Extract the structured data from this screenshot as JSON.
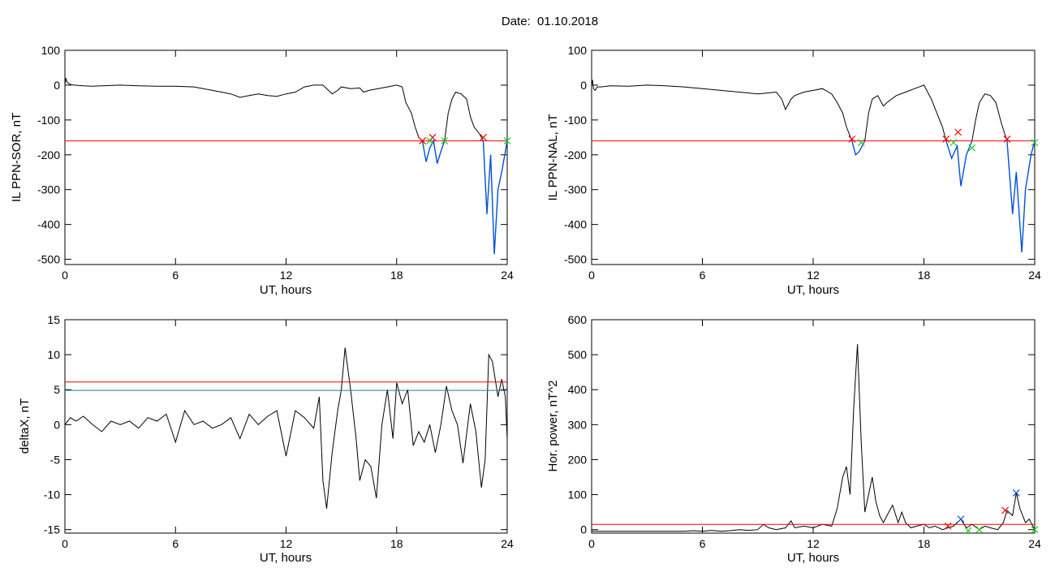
{
  "title": "Date:  01.10.2018",
  "colors": {
    "axes": "#000000",
    "trace": "#000000",
    "threshold": "#ff0000",
    "level2": "#1e7ea0",
    "event": "#0050dc",
    "start_mark": "#ff0000",
    "end_mark": "#22cc22",
    "peak_mark": "#0050dc"
  },
  "chart_data": [
    {
      "type": "line",
      "ylabel": "IL PPN-SOR, nT",
      "xlabel": "UT, hours",
      "xlim": [
        0,
        24
      ],
      "ylim": [
        -515,
        100
      ],
      "xticks": [
        0,
        6,
        12,
        18,
        24
      ],
      "yticks": [
        100,
        0,
        -100,
        -200,
        -300,
        -400,
        -500
      ],
      "threshold": -160,
      "series": [
        {
          "role": "trace",
          "x": [
            0,
            0.05,
            0.1,
            0.2,
            0.3,
            0.5,
            1,
            1.5,
            2,
            3,
            4,
            5,
            6,
            7,
            7.5,
            8,
            8.5,
            9,
            9.5,
            10,
            10.5,
            11,
            11.5,
            12,
            12.5,
            13,
            13.5,
            14,
            14.2,
            14.5,
            14.8,
            15,
            15.5,
            16,
            16.2,
            16.5,
            17,
            17.5,
            18,
            18.3,
            18.5,
            18.8,
            19,
            19.2,
            19.4
          ],
          "y": [
            0,
            20,
            10,
            5,
            2,
            0,
            -2,
            -3,
            -2,
            0,
            -2,
            -3,
            -3,
            -5,
            -10,
            -15,
            -20,
            -25,
            -35,
            -30,
            -25,
            -30,
            -32,
            -25,
            -20,
            -5,
            0,
            0,
            -10,
            -25,
            -15,
            -5,
            -10,
            -8,
            -20,
            -15,
            -10,
            -5,
            0,
            -5,
            -50,
            -80,
            -120,
            -150,
            -160
          ]
        },
        {
          "role": "trace",
          "x": [
            20.6,
            20.8,
            21,
            21.2,
            21.5,
            21.8,
            22,
            22.2,
            22.5,
            22.7
          ],
          "y": [
            -160,
            -80,
            -40,
            -20,
            -25,
            -40,
            -90,
            -120,
            -140,
            -160
          ]
        },
        {
          "role": "event",
          "x": [
            19.4,
            19.6,
            19.8,
            20,
            20.2,
            20.4,
            20.6
          ],
          "y": [
            -160,
            -220,
            -180,
            -160,
            -225,
            -190,
            -160
          ]
        },
        {
          "role": "event",
          "x": [
            22.7,
            22.9,
            23.1,
            23.3,
            23.5,
            23.7,
            24
          ],
          "y": [
            -160,
            -370,
            -200,
            -485,
            -300,
            -250,
            -160
          ]
        }
      ],
      "markers": [
        {
          "kind": "start",
          "x": [
            19.4,
            19.95,
            22.7
          ],
          "y": [
            -160,
            -150,
            -150
          ]
        },
        {
          "kind": "end",
          "x": [
            19.8,
            20.6,
            24
          ],
          "y": [
            -160,
            -160,
            -160
          ]
        }
      ]
    },
    {
      "type": "line",
      "ylabel": "IL PPN-NAL, nT",
      "xlabel": "UT, hours",
      "xlim": [
        0,
        24
      ],
      "ylim": [
        -515,
        100
      ],
      "xticks": [
        0,
        6,
        12,
        18,
        24
      ],
      "yticks": [
        100,
        0,
        -100,
        -200,
        -300,
        -400,
        -500
      ],
      "threshold": -160,
      "series": [
        {
          "role": "trace",
          "x": [
            0,
            0.05,
            0.1,
            0.2,
            0.3,
            0.5,
            1,
            2,
            3,
            4,
            5,
            6,
            7,
            8,
            9,
            10,
            10.3,
            10.5,
            10.8,
            11,
            11.5,
            12,
            12.5,
            13,
            13.3,
            13.6,
            13.8,
            14.1
          ],
          "y": [
            0,
            15,
            -10,
            -15,
            -5,
            -5,
            -2,
            -3,
            0,
            -2,
            -5,
            -10,
            -15,
            -20,
            -25,
            -20,
            -40,
            -70,
            -40,
            -30,
            -20,
            -15,
            -10,
            -25,
            -50,
            -80,
            -120,
            -160
          ]
        },
        {
          "role": "trace",
          "x": [
            14.8,
            15,
            15.2,
            15.5,
            15.8,
            16,
            16.5,
            17,
            17.5,
            18,
            18.4,
            18.7,
            19,
            19.2
          ],
          "y": [
            -160,
            -80,
            -40,
            -30,
            -60,
            -50,
            -30,
            -20,
            -10,
            0,
            -40,
            -80,
            -120,
            -160
          ]
        },
        {
          "role": "trace",
          "x": [
            20.6,
            20.8,
            21,
            21.3,
            21.6,
            21.9,
            22.2,
            22.5
          ],
          "y": [
            -160,
            -100,
            -50,
            -25,
            -30,
            -50,
            -110,
            -160
          ]
        },
        {
          "role": "event",
          "x": [
            14.1,
            14.3,
            14.5,
            14.8
          ],
          "y": [
            -160,
            -200,
            -190,
            -160
          ]
        },
        {
          "role": "event",
          "x": [
            19.2,
            19.5,
            19.8,
            20,
            20.3,
            20.6
          ],
          "y": [
            -160,
            -210,
            -175,
            -290,
            -200,
            -160
          ]
        },
        {
          "role": "event",
          "x": [
            22.5,
            22.8,
            23,
            23.3,
            23.5,
            23.8,
            24
          ],
          "y": [
            -160,
            -370,
            -250,
            -480,
            -300,
            -200,
            -160
          ]
        }
      ],
      "markers": [
        {
          "kind": "start",
          "x": [
            14.1,
            19.2,
            19.85,
            22.5
          ],
          "y": [
            -155,
            -155,
            -135,
            -155
          ]
        },
        {
          "kind": "end",
          "x": [
            14.6,
            19.6,
            20.6,
            24
          ],
          "y": [
            -165,
            -165,
            -180,
            -165
          ]
        }
      ]
    },
    {
      "type": "line",
      "ylabel": "deltaX, nT",
      "xlabel": "UT, hours",
      "xlim": [
        0,
        24
      ],
      "ylim": [
        -15.5,
        15
      ],
      "xticks": [
        0,
        6,
        12,
        18,
        24
      ],
      "yticks": [
        15,
        10,
        5,
        0,
        -5,
        -10,
        -15
      ],
      "threshold": 6.1,
      "level2": 4.9,
      "series": [
        {
          "role": "trace",
          "x": [
            0,
            0.3,
            0.6,
            1,
            1.5,
            2,
            2.5,
            3,
            3.5,
            4,
            4.5,
            5,
            5.5,
            6,
            6.5,
            7,
            7.5,
            8,
            8.5,
            9,
            9.5,
            10,
            10.5,
            11,
            11.5,
            12,
            12.5,
            13,
            13.5,
            13.8,
            14,
            14.2,
            14.5,
            14.8,
            15,
            15.2,
            15.5,
            15.8,
            16,
            16.3,
            16.6,
            16.9,
            17.2,
            17.5,
            17.8,
            18,
            18.3,
            18.6,
            18.9,
            19.2,
            19.5,
            19.8,
            20.1,
            20.4,
            20.7,
            21,
            21.3,
            21.6,
            22,
            22.3,
            22.6,
            22.8,
            23,
            23.2,
            23.5,
            23.7,
            23.9,
            24
          ],
          "y": [
            0,
            1,
            0.5,
            1.2,
            0,
            -1,
            0.5,
            0,
            0.5,
            -0.5,
            1,
            0.5,
            1.5,
            -2.5,
            2,
            0,
            0.5,
            -0.5,
            0,
            1,
            -2,
            1.5,
            0,
            1.2,
            2,
            -4.5,
            2,
            1,
            -0.5,
            4,
            -8,
            -12,
            -4,
            2,
            5,
            11,
            5,
            -2,
            -8,
            -5,
            -6,
            -10.5,
            0,
            5,
            -2,
            6,
            3,
            5,
            -3,
            -1,
            -2.5,
            0,
            -4,
            0,
            5.5,
            2,
            0,
            -5.5,
            3,
            -1,
            -9,
            -5,
            10,
            9,
            4,
            6.5,
            4,
            -2
          ]
        }
      ]
    },
    {
      "type": "line",
      "ylabel": "Hor. power, nT^2",
      "xlabel": "UT, hours",
      "xlim": [
        0,
        24
      ],
      "ylim": [
        -10,
        600
      ],
      "xticks": [
        0,
        6,
        12,
        18,
        24
      ],
      "yticks": [
        600,
        500,
        400,
        300,
        200,
        100,
        0
      ],
      "threshold": 15,
      "series": [
        {
          "role": "trace",
          "x": [
            0,
            1,
            2,
            3,
            4,
            5,
            5.5,
            6,
            6.5,
            7,
            7.5,
            8,
            8.5,
            9,
            9.3,
            9.6,
            10,
            10.5,
            10.8,
            11,
            11.5,
            12,
            12.5,
            13,
            13.3,
            13.6,
            13.8,
            14,
            14.2,
            14.4,
            14.6,
            14.8,
            15,
            15.2,
            15.4,
            15.6,
            15.8,
            16,
            16.3,
            16.6,
            16.8,
            17,
            17.3,
            17.6,
            18,
            18.3,
            18.6,
            19,
            19.3,
            19.6,
            20,
            20.3,
            20.6,
            21,
            21.3,
            21.6,
            22,
            22.3,
            22.5,
            22.8,
            23,
            23.2,
            23.5,
            23.7,
            24
          ],
          "y": [
            -5,
            -5,
            -5,
            -5,
            -5,
            -5,
            -3,
            -5,
            -2,
            -5,
            -3,
            0,
            -2,
            0,
            15,
            5,
            0,
            5,
            25,
            5,
            10,
            5,
            15,
            10,
            60,
            150,
            180,
            100,
            350,
            530,
            250,
            50,
            100,
            150,
            80,
            40,
            20,
            40,
            70,
            20,
            50,
            20,
            5,
            10,
            15,
            5,
            10,
            0,
            5,
            10,
            30,
            5,
            15,
            0,
            10,
            5,
            0,
            20,
            55,
            40,
            105,
            60,
            20,
            30,
            0
          ]
        }
      ],
      "markers": [
        {
          "kind": "start",
          "x": [
            19.3,
            22.4
          ],
          "y": [
            10,
            55
          ]
        },
        {
          "kind": "peak",
          "x": [
            20,
            23
          ],
          "y": [
            30,
            105
          ]
        },
        {
          "kind": "end",
          "x": [
            20.4,
            21,
            24
          ],
          "y": [
            -3,
            0,
            0
          ]
        }
      ]
    }
  ]
}
